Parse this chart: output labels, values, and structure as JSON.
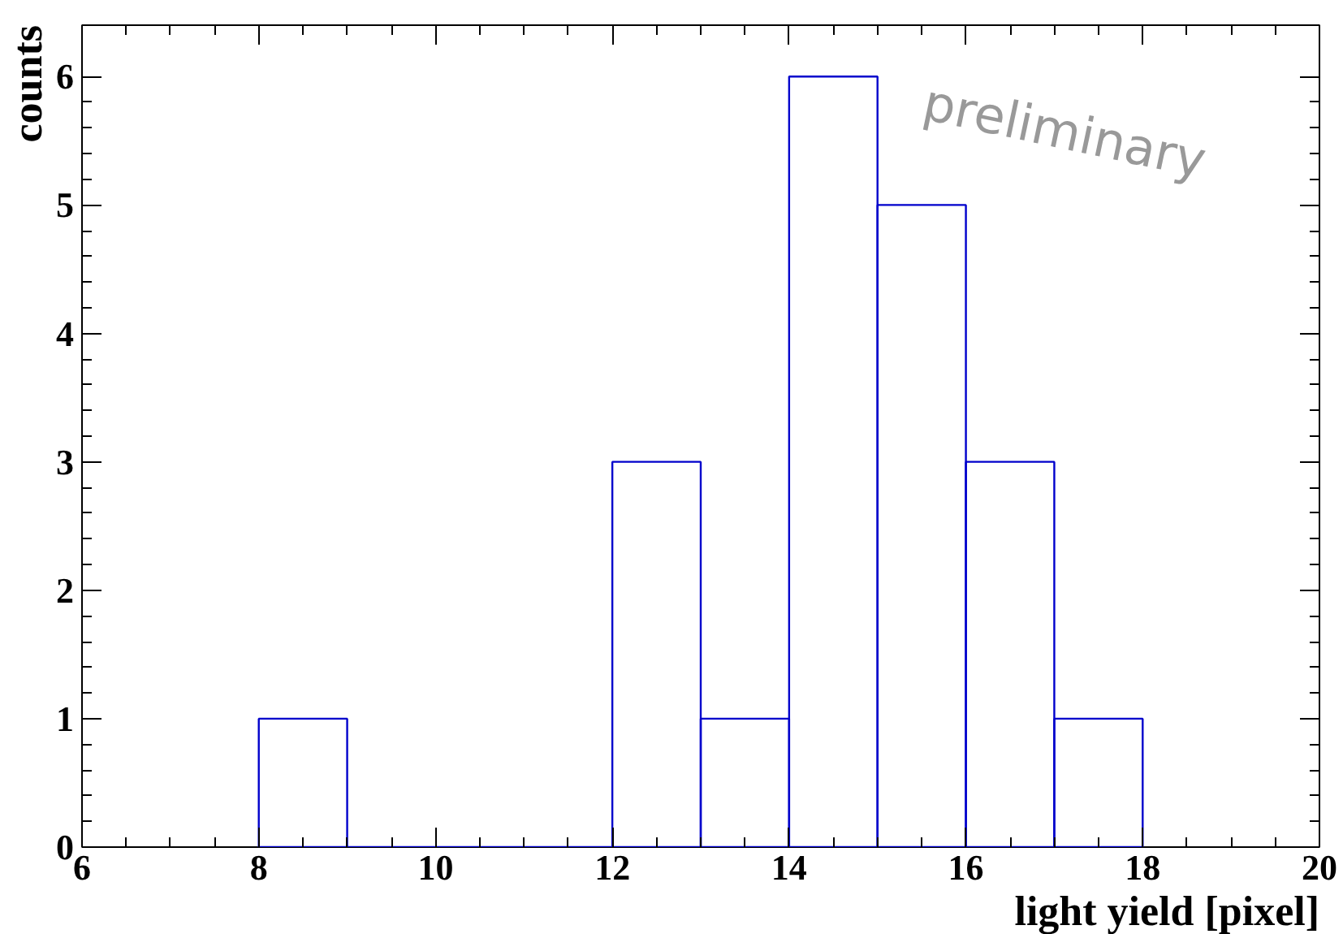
{
  "chart_data": {
    "type": "histogram",
    "xlabel": "light yield [pixel]",
    "ylabel": "counts",
    "bins": [
      8,
      9,
      10,
      11,
      12,
      13,
      14,
      15,
      16,
      17,
      18
    ],
    "values": [
      1,
      0,
      0,
      0,
      3,
      1,
      6,
      5,
      3,
      1
    ],
    "color": "#0000cc",
    "xlim": [
      6,
      20
    ],
    "xticks": [
      6,
      8,
      10,
      12,
      14,
      16,
      18,
      20
    ],
    "ylim": [
      0,
      6.4
    ],
    "yticks": [
      0,
      1,
      2,
      3,
      4,
      5,
      6
    ],
    "grid": false,
    "annotations": [
      "preliminary"
    ]
  }
}
